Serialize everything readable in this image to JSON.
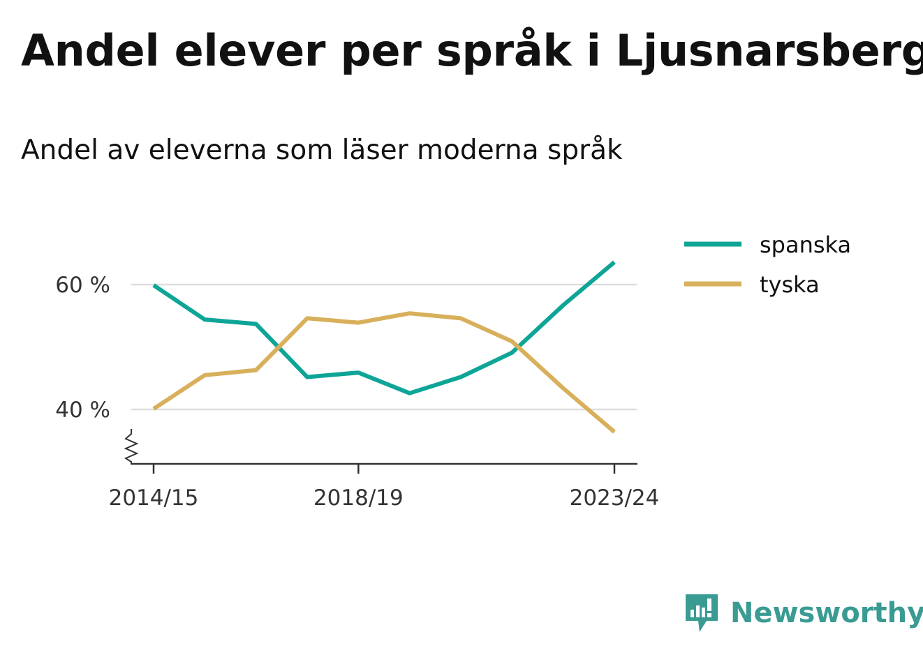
{
  "title": "Andel elever per språk i Ljusnarsberg",
  "subtitle": "Andel av eleverna som läser moderna språk",
  "brand": {
    "name": "Newsworthy",
    "icon": "newsworthy-logo-icon",
    "color": "#3a9b93"
  },
  "chart_data": {
    "type": "line",
    "x": [
      "2014/15",
      "2015/16",
      "2016/17",
      "2017/18",
      "2018/19",
      "2019/20",
      "2020/21",
      "2021/22",
      "2022/23",
      "2023/24"
    ],
    "x_tick_labels": [
      "2014/15",
      "2018/19",
      "2023/24"
    ],
    "series": [
      {
        "name": "spanska",
        "color": "#0ea597",
        "values": [
          59.9,
          54.4,
          53.7,
          45.2,
          45.9,
          42.6,
          45.2,
          49.1,
          56.7,
          63.6
        ]
      },
      {
        "name": "tyska",
        "color": "#d8b05c",
        "values": [
          40.1,
          45.5,
          46.3,
          54.6,
          53.9,
          55.4,
          54.6,
          50.9,
          43.4,
          36.4
        ]
      }
    ],
    "y_ticks": [
      40,
      60
    ],
    "y_tick_labels": [
      "40 %",
      "60 %"
    ],
    "ylim": [
      31,
      66
    ],
    "axis_break": true,
    "grid": "horizontal",
    "legend_position": "right"
  }
}
